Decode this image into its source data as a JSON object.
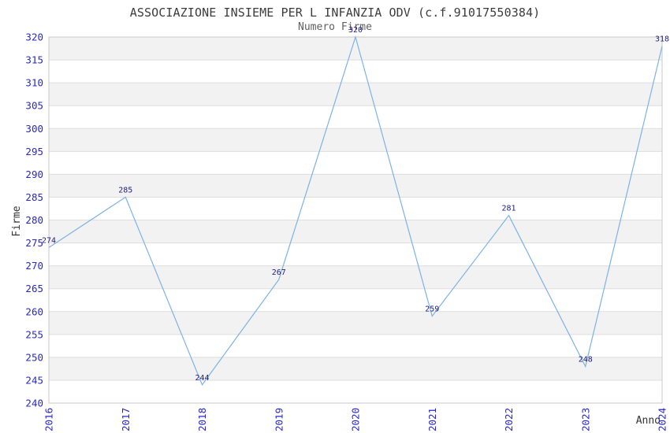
{
  "chart_data": {
    "type": "line",
    "title": "ASSOCIAZIONE INSIEME PER L INFANZIA ODV (c.f.91017550384)",
    "subtitle": "Numero Firme",
    "xlabel": "Anno",
    "ylabel": "Firme",
    "x": [
      2016,
      2017,
      2018,
      2019,
      2020,
      2021,
      2022,
      2023,
      2024
    ],
    "values": [
      274,
      285,
      244,
      267,
      320,
      259,
      281,
      248,
      318
    ],
    "ylim": [
      240,
      320
    ],
    "ytick_step": 5,
    "grid": "horizontal-bands-alternating",
    "legend": "none",
    "markers": "none",
    "colors": {
      "line": "#7db2e6",
      "tick_labels": "#2727cf",
      "data_labels": "#1e1e82",
      "band_fill": "#f2f2f2",
      "band_alt_fill": "#ffffff",
      "grid_line": "#dedede",
      "plot_border": "#c8c8c8",
      "title_text": "#3c3c3c",
      "subtitle_text": "#5f5f5f",
      "axis_title_text": "#333333",
      "background": "#ffffff"
    }
  }
}
